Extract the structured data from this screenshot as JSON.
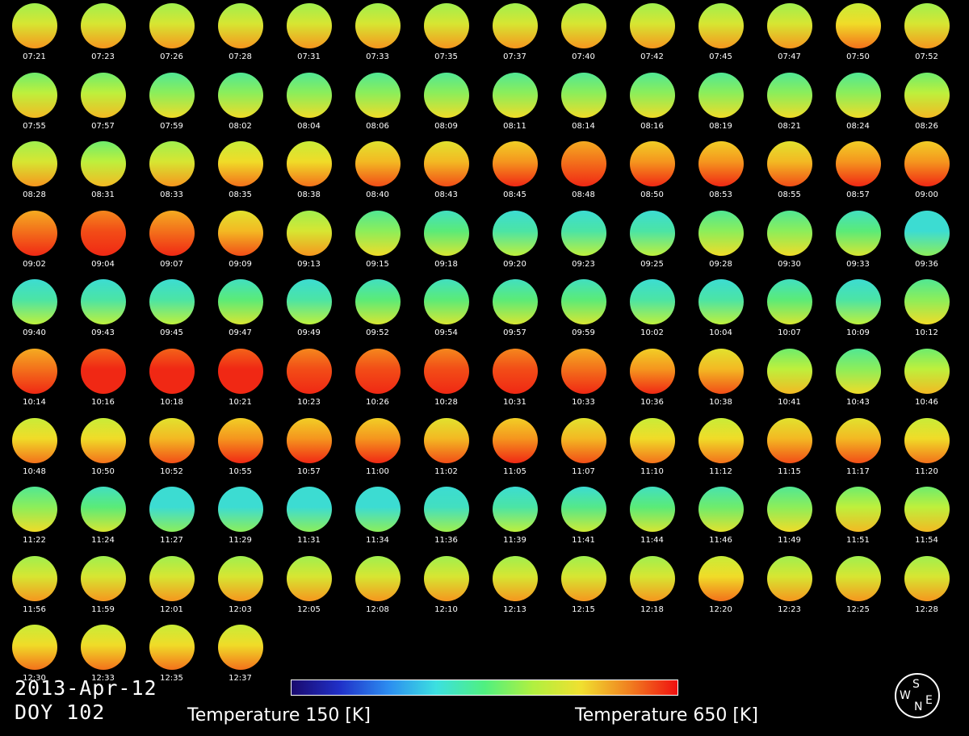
{
  "frames": [
    {
      "time": "07:21",
      "heat": 0.55
    },
    {
      "time": "07:23",
      "heat": 0.55
    },
    {
      "time": "07:26",
      "heat": 0.55
    },
    {
      "time": "07:28",
      "heat": 0.55
    },
    {
      "time": "07:31",
      "heat": 0.55
    },
    {
      "time": "07:33",
      "heat": 0.55
    },
    {
      "time": "07:35",
      "heat": 0.55
    },
    {
      "time": "07:37",
      "heat": 0.55
    },
    {
      "time": "07:40",
      "heat": 0.55
    },
    {
      "time": "07:42",
      "heat": 0.55
    },
    {
      "time": "07:45",
      "heat": 0.55
    },
    {
      "time": "07:47",
      "heat": 0.55
    },
    {
      "time": "07:50",
      "heat": 0.6
    },
    {
      "time": "07:52",
      "heat": 0.55
    },
    {
      "time": "07:55",
      "heat": 0.5
    },
    {
      "time": "07:57",
      "heat": 0.5
    },
    {
      "time": "07:59",
      "heat": 0.45
    },
    {
      "time": "08:02",
      "heat": 0.45
    },
    {
      "time": "08:04",
      "heat": 0.45
    },
    {
      "time": "08:06",
      "heat": 0.45
    },
    {
      "time": "08:09",
      "heat": 0.45
    },
    {
      "time": "08:11",
      "heat": 0.45
    },
    {
      "time": "08:14",
      "heat": 0.45
    },
    {
      "time": "08:16",
      "heat": 0.45
    },
    {
      "time": "08:19",
      "heat": 0.45
    },
    {
      "time": "08:21",
      "heat": 0.45
    },
    {
      "time": "08:24",
      "heat": 0.45
    },
    {
      "time": "08:26",
      "heat": 0.5
    },
    {
      "time": "08:28",
      "heat": 0.55
    },
    {
      "time": "08:31",
      "heat": 0.5
    },
    {
      "time": "08:33",
      "heat": 0.55
    },
    {
      "time": "08:35",
      "heat": 0.6
    },
    {
      "time": "08:38",
      "heat": 0.6
    },
    {
      "time": "08:40",
      "heat": 0.65
    },
    {
      "time": "08:43",
      "heat": 0.65
    },
    {
      "time": "08:45",
      "heat": 0.7
    },
    {
      "time": "08:48",
      "heat": 0.75
    },
    {
      "time": "08:50",
      "heat": 0.7
    },
    {
      "time": "08:53",
      "heat": 0.7
    },
    {
      "time": "08:55",
      "heat": 0.65
    },
    {
      "time": "08:57",
      "heat": 0.7
    },
    {
      "time": "09:00",
      "heat": 0.7
    },
    {
      "time": "09:02",
      "heat": 0.75
    },
    {
      "time": "09:04",
      "heat": 0.8
    },
    {
      "time": "09:07",
      "heat": 0.75
    },
    {
      "time": "09:09",
      "heat": 0.65
    },
    {
      "time": "09:13",
      "heat": 0.55
    },
    {
      "time": "09:15",
      "heat": 0.45
    },
    {
      "time": "09:18",
      "heat": 0.4
    },
    {
      "time": "09:20",
      "heat": 0.35
    },
    {
      "time": "09:23",
      "heat": 0.35
    },
    {
      "time": "09:25",
      "heat": 0.35
    },
    {
      "time": "09:28",
      "heat": 0.45
    },
    {
      "time": "09:30",
      "heat": 0.45
    },
    {
      "time": "09:33",
      "heat": 0.4
    },
    {
      "time": "09:36",
      "heat": 0.3
    },
    {
      "time": "09:40",
      "heat": 0.35
    },
    {
      "time": "09:43",
      "heat": 0.35
    },
    {
      "time": "09:45",
      "heat": 0.35
    },
    {
      "time": "09:47",
      "heat": 0.4
    },
    {
      "time": "09:49",
      "heat": 0.35
    },
    {
      "time": "09:52",
      "heat": 0.4
    },
    {
      "time": "09:54",
      "heat": 0.4
    },
    {
      "time": "09:57",
      "heat": 0.4
    },
    {
      "time": "09:59",
      "heat": 0.4
    },
    {
      "time": "10:02",
      "heat": 0.35
    },
    {
      "time": "10:04",
      "heat": 0.35
    },
    {
      "time": "10:07",
      "heat": 0.4
    },
    {
      "time": "10:09",
      "heat": 0.35
    },
    {
      "time": "10:12",
      "heat": 0.45
    },
    {
      "time": "10:14",
      "heat": 0.75
    },
    {
      "time": "10:16",
      "heat": 0.85
    },
    {
      "time": "10:18",
      "heat": 0.85
    },
    {
      "time": "10:21",
      "heat": 0.85
    },
    {
      "time": "10:23",
      "heat": 0.8
    },
    {
      "time": "10:26",
      "heat": 0.8
    },
    {
      "time": "10:28",
      "heat": 0.8
    },
    {
      "time": "10:31",
      "heat": 0.8
    },
    {
      "time": "10:33",
      "heat": 0.75
    },
    {
      "time": "10:36",
      "heat": 0.7
    },
    {
      "time": "10:38",
      "heat": 0.65
    },
    {
      "time": "10:41",
      "heat": 0.5
    },
    {
      "time": "10:43",
      "heat": 0.45
    },
    {
      "time": "10:46",
      "heat": 0.5
    },
    {
      "time": "10:48",
      "heat": 0.6
    },
    {
      "time": "10:50",
      "heat": 0.6
    },
    {
      "time": "10:52",
      "heat": 0.65
    },
    {
      "time": "10:55",
      "heat": 0.7
    },
    {
      "time": "10:57",
      "heat": 0.7
    },
    {
      "time": "11:00",
      "heat": 0.7
    },
    {
      "time": "11:02",
      "heat": 0.65
    },
    {
      "time": "11:05",
      "heat": 0.7
    },
    {
      "time": "11:07",
      "heat": 0.65
    },
    {
      "time": "11:10",
      "heat": 0.6
    },
    {
      "time": "11:12",
      "heat": 0.6
    },
    {
      "time": "11:15",
      "heat": 0.65
    },
    {
      "time": "11:17",
      "heat": 0.65
    },
    {
      "time": "11:20",
      "heat": 0.6
    },
    {
      "time": "11:22",
      "heat": 0.45
    },
    {
      "time": "11:24",
      "heat": 0.4
    },
    {
      "time": "11:27",
      "heat": 0.3
    },
    {
      "time": "11:29",
      "heat": 0.3
    },
    {
      "time": "11:31",
      "heat": 0.3
    },
    {
      "time": "11:34",
      "heat": 0.3
    },
    {
      "time": "11:36",
      "heat": 0.32
    },
    {
      "time": "11:39",
      "heat": 0.35
    },
    {
      "time": "11:41",
      "heat": 0.38
    },
    {
      "time": "11:44",
      "heat": 0.4
    },
    {
      "time": "11:46",
      "heat": 0.42
    },
    {
      "time": "11:49",
      "heat": 0.45
    },
    {
      "time": "11:51",
      "heat": 0.5
    },
    {
      "time": "11:54",
      "heat": 0.5
    },
    {
      "time": "11:56",
      "heat": 0.55
    },
    {
      "time": "11:59",
      "heat": 0.55
    },
    {
      "time": "12:01",
      "heat": 0.55
    },
    {
      "time": "12:03",
      "heat": 0.55
    },
    {
      "time": "12:05",
      "heat": 0.55
    },
    {
      "time": "12:08",
      "heat": 0.55
    },
    {
      "time": "12:10",
      "heat": 0.55
    },
    {
      "time": "12:13",
      "heat": 0.55
    },
    {
      "time": "12:15",
      "heat": 0.55
    },
    {
      "time": "12:18",
      "heat": 0.55
    },
    {
      "time": "12:20",
      "heat": 0.6
    },
    {
      "time": "12:23",
      "heat": 0.55
    },
    {
      "time": "12:25",
      "heat": 0.55
    },
    {
      "time": "12:28",
      "heat": 0.55
    },
    {
      "time": "12:30",
      "heat": 0.6
    },
    {
      "time": "12:33",
      "heat": 0.6
    },
    {
      "time": "12:35",
      "heat": 0.6
    },
    {
      "time": "12:37",
      "heat": 0.6
    }
  ],
  "footer": {
    "date": "2013-Apr-12",
    "doy": "DOY 102",
    "temp_min_label": "Temperature 150 [K]",
    "temp_max_label": "Temperature 650 [K]"
  },
  "compass": {
    "top": "S",
    "left": "W",
    "right": "E",
    "bottom": "N"
  },
  "colors": {
    "background": "#000000",
    "scale_low": "#1a0a6e",
    "scale_high": "#f01010"
  }
}
